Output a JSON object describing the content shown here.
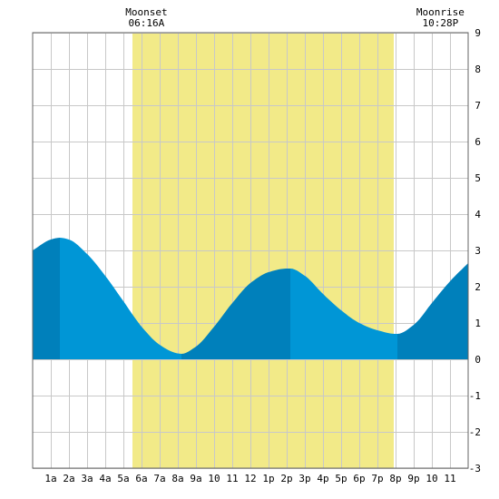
{
  "chart_data": {
    "type": "area",
    "title": "",
    "xlabel": "",
    "ylabel": "",
    "x_hours_range": [
      0,
      24
    ],
    "ylim": [
      -3,
      9
    ],
    "y_ticks": [
      -3,
      -2,
      -1,
      0,
      1,
      2,
      3,
      4,
      5,
      6,
      7,
      8,
      9
    ],
    "x_ticks": [
      {
        "hour": 1,
        "label": "1a"
      },
      {
        "hour": 2,
        "label": "2a"
      },
      {
        "hour": 3,
        "label": "3a"
      },
      {
        "hour": 4,
        "label": "4a"
      },
      {
        "hour": 5,
        "label": "5a"
      },
      {
        "hour": 6,
        "label": "6a"
      },
      {
        "hour": 7,
        "label": "7a"
      },
      {
        "hour": 8,
        "label": "8a"
      },
      {
        "hour": 9,
        "label": "9a"
      },
      {
        "hour": 10,
        "label": "10"
      },
      {
        "hour": 11,
        "label": "11"
      },
      {
        "hour": 12,
        "label": "12"
      },
      {
        "hour": 13,
        "label": "1p"
      },
      {
        "hour": 14,
        "label": "2p"
      },
      {
        "hour": 15,
        "label": "3p"
      },
      {
        "hour": 16,
        "label": "4p"
      },
      {
        "hour": 17,
        "label": "5p"
      },
      {
        "hour": 18,
        "label": "6p"
      },
      {
        "hour": 19,
        "label": "7p"
      },
      {
        "hour": 20,
        "label": "8p"
      },
      {
        "hour": 21,
        "label": "9p"
      },
      {
        "hour": 22,
        "label": "10"
      },
      {
        "hour": 23,
        "label": "11"
      }
    ],
    "daylight": {
      "start_hour": 5.5,
      "end_hour": 19.9
    },
    "tide_extremes": [
      {
        "hour": 1.5,
        "height": 3.35,
        "type": "high"
      },
      {
        "hour": 8.2,
        "height": 0.15,
        "type": "low"
      },
      {
        "hour": 14.2,
        "height": 2.5,
        "type": "high"
      },
      {
        "hour": 20.1,
        "height": 0.7,
        "type": "low"
      }
    ],
    "series": [
      {
        "values_hour": [
          0,
          1,
          1.5,
          2,
          3,
          4,
          5,
          6,
          7,
          8,
          8.2,
          9,
          10,
          11,
          12,
          13,
          14,
          14.2,
          15,
          16,
          17,
          18,
          19,
          20,
          20.1,
          21,
          22,
          23,
          24
        ],
        "values_height": [
          3.0,
          3.3,
          3.35,
          3.3,
          2.9,
          2.3,
          1.6,
          0.9,
          0.4,
          0.16,
          0.15,
          0.35,
          0.9,
          1.55,
          2.1,
          2.4,
          2.5,
          2.5,
          2.3,
          1.8,
          1.35,
          1.0,
          0.8,
          0.7,
          0.7,
          0.95,
          1.55,
          2.15,
          2.65
        ]
      }
    ],
    "annotations": [
      {
        "hour": 6.27,
        "line1": "Moonset",
        "line2": "06:16A"
      },
      {
        "hour": 22.47,
        "line1": "Moonrise",
        "line2": "10:28P"
      }
    ],
    "colors": {
      "daylight": "#f2ea88",
      "tide_light": "#0096d6",
      "tide_dark": "#0080bb",
      "grid": "#c8c8c8",
      "frame": "#666666"
    },
    "grid": true
  }
}
